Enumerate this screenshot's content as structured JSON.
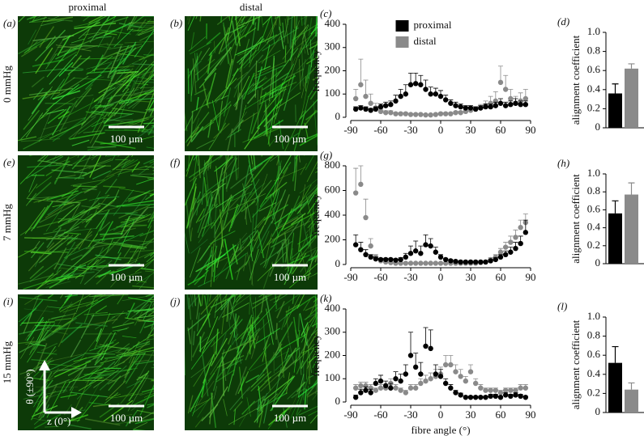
{
  "figure": {
    "columns": [
      "proximal",
      "distal"
    ],
    "rows": [
      "0 mmHg",
      "7 mmHg",
      "15 mmHg"
    ],
    "images": [
      {
        "panel": "(a)",
        "scale_bar": "100 µm"
      },
      {
        "panel": "(b)",
        "scale_bar": "100 µm"
      },
      {
        "panel": "(e)",
        "scale_bar": "100 µm"
      },
      {
        "panel": "(f)",
        "scale_bar": "100 µm"
      },
      {
        "panel": "(i)",
        "scale_bar": "100 µm"
      },
      {
        "panel": "(j)",
        "scale_bar": "100 µm"
      }
    ],
    "orientation": {
      "theta": "θ (±90°)",
      "z": "z (0°)"
    }
  },
  "chart_data": [
    {
      "type": "scatter",
      "panel": "(c)",
      "ylabel": "frequency",
      "legend": "upper-center",
      "x": [
        -85,
        -80,
        -75,
        -70,
        -65,
        -60,
        -55,
        -50,
        -45,
        -40,
        -35,
        -30,
        -25,
        -20,
        -15,
        -10,
        -5,
        0,
        5,
        10,
        15,
        20,
        25,
        30,
        35,
        40,
        45,
        50,
        55,
        60,
        65,
        70,
        75,
        80,
        85
      ],
      "series": [
        {
          "name": "proximal",
          "color": "#000000",
          "values": [
            35,
            40,
            35,
            30,
            35,
            45,
            50,
            55,
            70,
            90,
            100,
            140,
            145,
            140,
            120,
            100,
            100,
            90,
            75,
            60,
            50,
            45,
            40,
            40,
            35,
            40,
            45,
            45,
            50,
            60,
            50,
            55,
            60,
            55,
            55
          ],
          "errors": [
            10,
            10,
            10,
            8,
            10,
            12,
            15,
            15,
            25,
            30,
            40,
            50,
            45,
            40,
            40,
            30,
            25,
            25,
            20,
            15,
            15,
            12,
            10,
            10,
            10,
            10,
            12,
            12,
            15,
            20,
            15,
            15,
            20,
            15,
            15
          ]
        },
        {
          "name": "distal",
          "color": "#8a8a8a",
          "values": [
            80,
            140,
            90,
            60,
            40,
            25,
            20,
            20,
            15,
            15,
            15,
            12,
            12,
            12,
            10,
            10,
            12,
            15,
            15,
            15,
            20,
            20,
            25,
            30,
            35,
            40,
            50,
            60,
            70,
            150,
            120,
            80,
            60,
            70,
            80
          ],
          "errors": [
            40,
            110,
            70,
            40,
            20,
            10,
            8,
            8,
            5,
            5,
            5,
            4,
            4,
            4,
            4,
            4,
            4,
            5,
            5,
            5,
            6,
            6,
            8,
            10,
            10,
            15,
            20,
            30,
            40,
            70,
            60,
            40,
            30,
            35,
            40
          ]
        }
      ],
      "xlim": [
        -90,
        90
      ],
      "xticks": [
        -90,
        -60,
        -30,
        0,
        30,
        60,
        90
      ],
      "ylim": [
        0,
        400
      ],
      "yticks": [
        0,
        100,
        200,
        300,
        400
      ]
    },
    {
      "type": "bar",
      "panel": "(d)",
      "ylabel": "alignment coefficient",
      "values": [
        0.36,
        0.62
      ],
      "errors": [
        0.1,
        0.05
      ],
      "colors": [
        "#000000",
        "#8a8a8a"
      ],
      "ylim": [
        0,
        1
      ],
      "yticks": [
        0,
        0.2,
        0.4,
        0.6,
        0.8,
        {
          "value": 1,
          "label": "1.0"
        }
      ]
    },
    {
      "type": "scatter",
      "panel": "(g)",
      "ylabel": "frequency",
      "x": [
        -85,
        -80,
        -75,
        -70,
        -65,
        -60,
        -55,
        -50,
        -45,
        -40,
        -35,
        -30,
        -25,
        -20,
        -15,
        -10,
        -5,
        0,
        5,
        10,
        15,
        20,
        25,
        30,
        35,
        40,
        45,
        50,
        55,
        60,
        65,
        70,
        75,
        80,
        85
      ],
      "series": [
        {
          "color": "#000000",
          "values": [
            160,
            120,
            80,
            60,
            45,
            40,
            40,
            40,
            35,
            40,
            60,
            90,
            110,
            90,
            160,
            150,
            100,
            60,
            40,
            30,
            25,
            20,
            20,
            20,
            20,
            20,
            20,
            30,
            40,
            60,
            80,
            100,
            130,
            170,
            260
          ],
          "errors": [
            80,
            60,
            40,
            20,
            15,
            10,
            10,
            10,
            10,
            15,
            30,
            60,
            80,
            60,
            80,
            60,
            40,
            20,
            10,
            8,
            6,
            5,
            5,
            5,
            5,
            5,
            5,
            10,
            15,
            20,
            30,
            40,
            50,
            60,
            100
          ]
        },
        {
          "color": "#8a8a8a",
          "values": [
            580,
            650,
            380,
            150,
            60,
            30,
            20,
            15,
            10,
            10,
            10,
            10,
            10,
            10,
            10,
            10,
            10,
            10,
            10,
            10,
            10,
            10,
            10,
            10,
            10,
            15,
            20,
            40,
            60,
            100,
            140,
            180,
            220,
            300,
            340
          ],
          "errors": [
            200,
            150,
            150,
            60,
            20,
            10,
            5,
            5,
            4,
            4,
            4,
            4,
            4,
            4,
            4,
            4,
            4,
            4,
            4,
            4,
            4,
            4,
            4,
            4,
            4,
            5,
            8,
            15,
            20,
            30,
            40,
            50,
            60,
            60,
            70
          ]
        }
      ],
      "xlim": [
        -90,
        90
      ],
      "xticks": [
        -90,
        -60,
        -30,
        0,
        30,
        60,
        90
      ],
      "ylim": [
        0,
        800
      ],
      "yticks": [
        0,
        200,
        400,
        600,
        800
      ]
    },
    {
      "type": "bar",
      "panel": "(h)",
      "ylabel": "alignment coefficient",
      "values": [
        0.56,
        0.77
      ],
      "errors": [
        0.14,
        0.13
      ],
      "colors": [
        "#000000",
        "#8a8a8a"
      ],
      "ylim": [
        0,
        1
      ],
      "yticks": [
        0,
        0.2,
        0.4,
        0.6,
        0.8,
        {
          "value": 1,
          "label": "1.0"
        }
      ]
    },
    {
      "type": "scatter",
      "panel": "(k)",
      "ylabel": "frequency",
      "xlabel": "fibre angle (°)",
      "x": [
        -85,
        -80,
        -75,
        -70,
        -65,
        -60,
        -55,
        -50,
        -45,
        -40,
        -35,
        -30,
        -25,
        -20,
        -15,
        -10,
        -5,
        0,
        5,
        10,
        15,
        20,
        25,
        30,
        35,
        40,
        45,
        50,
        55,
        60,
        65,
        70,
        75,
        80,
        85
      ],
      "series": [
        {
          "color": "#000000",
          "values": [
            20,
            40,
            50,
            40,
            80,
            90,
            70,
            60,
            100,
            90,
            120,
            200,
            150,
            120,
            240,
            230,
            120,
            110,
            80,
            60,
            40,
            30,
            20,
            20,
            20,
            20,
            20,
            25,
            25,
            20,
            30,
            25,
            30,
            25,
            20
          ],
          "errors": [
            10,
            15,
            15,
            15,
            20,
            25,
            20,
            20,
            30,
            30,
            40,
            100,
            60,
            50,
            80,
            80,
            40,
            30,
            20,
            15,
            10,
            8,
            5,
            5,
            5,
            5,
            5,
            8,
            8,
            5,
            10,
            8,
            10,
            8,
            5
          ]
        },
        {
          "color": "#8a8a8a",
          "values": [
            60,
            70,
            70,
            60,
            50,
            60,
            60,
            80,
            60,
            50,
            40,
            60,
            60,
            80,
            90,
            100,
            110,
            120,
            160,
            160,
            130,
            110,
            90,
            130,
            80,
            60,
            50,
            50,
            50,
            40,
            50,
            50,
            50,
            60,
            60
          ],
          "errors": [
            15,
            15,
            15,
            15,
            10,
            15,
            15,
            20,
            15,
            10,
            10,
            15,
            15,
            20,
            25,
            25,
            30,
            30,
            40,
            40,
            30,
            30,
            20,
            30,
            20,
            15,
            10,
            10,
            10,
            10,
            10,
            10,
            10,
            15,
            15
          ]
        }
      ],
      "xlim": [
        -90,
        90
      ],
      "xticks": [
        -90,
        -60,
        -30,
        0,
        30,
        60,
        90
      ],
      "ylim": [
        0,
        400
      ],
      "yticks": [
        0,
        100,
        200,
        300,
        400
      ]
    },
    {
      "type": "bar",
      "panel": "(l)",
      "ylabel": "alignment coefficient",
      "values": [
        0.52,
        0.24
      ],
      "errors": [
        0.17,
        0.07
      ],
      "colors": [
        "#000000",
        "#8a8a8a"
      ],
      "ylim": [
        0,
        1
      ],
      "yticks": [
        0,
        0.2,
        0.4,
        0.6,
        0.8,
        {
          "value": 1,
          "label": "1.0"
        }
      ]
    }
  ]
}
